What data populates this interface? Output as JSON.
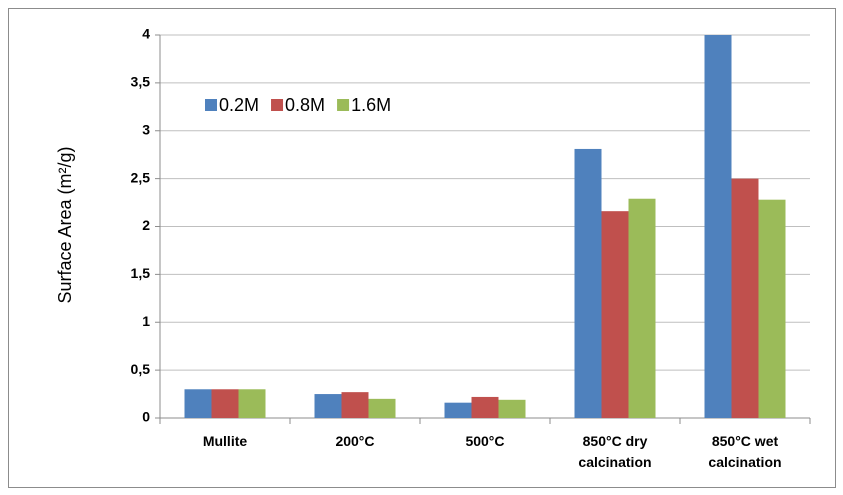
{
  "chart_data": {
    "type": "bar",
    "y_label": "Surface Area (m²/g)",
    "categories": [
      "Mullite",
      "200°C",
      "500°C",
      "850°C dry calcination",
      "850°C wet calcination"
    ],
    "series": [
      {
        "name": "0.2M",
        "color": "#4f81bd",
        "values": [
          0.3,
          0.25,
          0.16,
          2.81,
          4.0
        ]
      },
      {
        "name": "0.8M",
        "color": "#c0504d",
        "values": [
          0.3,
          0.27,
          0.22,
          2.16,
          2.5
        ]
      },
      {
        "name": "1.6M",
        "color": "#9bbb59",
        "values": [
          0.3,
          0.2,
          0.19,
          2.29,
          2.28
        ]
      }
    ],
    "ylim": [
      0,
      4
    ],
    "yticks": [
      0,
      {
        "value": 0.5,
        "label": "0,5"
      },
      1,
      {
        "value": 1.5,
        "label": "1,5"
      },
      2,
      {
        "value": 2.5,
        "label": "2,5"
      },
      3,
      {
        "value": 3.5,
        "label": "3,5"
      },
      4
    ],
    "grid": true,
    "legend": "top-left"
  }
}
